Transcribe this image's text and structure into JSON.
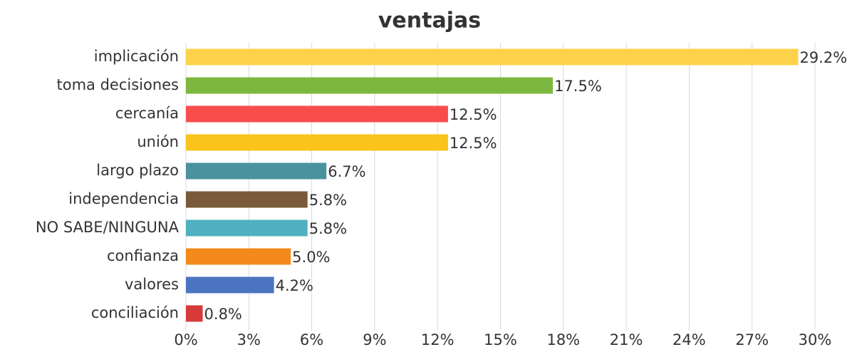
{
  "chart_data": {
    "type": "bar",
    "orientation": "horizontal",
    "title": "ventajas",
    "categories": [
      "implicación",
      "toma decisiones",
      "cercanía",
      "unión",
      "largo plazo",
      "independencia",
      "NO SABE/NINGUNA",
      "confianza",
      "valores",
      "conciliación"
    ],
    "values": [
      29.2,
      17.5,
      12.5,
      12.5,
      6.7,
      5.8,
      5.8,
      5.0,
      4.2,
      0.8
    ],
    "value_labels": [
      "29.2%",
      "17.5%",
      "12.5%",
      "12.5%",
      "6.7%",
      "5.8%",
      "5.8%",
      "5.0%",
      "4.2%",
      "0.8%"
    ],
    "colors": [
      "#fdd24a",
      "#7cb83f",
      "#f84d4d",
      "#fbc41c",
      "#4a939e",
      "#7a5a3a",
      "#50b0c0",
      "#f2891a",
      "#4a74c0",
      "#d63a3a"
    ],
    "xlim": [
      0,
      30
    ],
    "xticks": [
      {
        "value": 0,
        "label": "0%"
      },
      {
        "value": 3,
        "label": "3%"
      },
      {
        "value": 6,
        "label": "6%"
      },
      {
        "value": 9,
        "label": "9%"
      },
      {
        "value": 12,
        "label": "12%"
      },
      {
        "value": 15,
        "label": "15%"
      },
      {
        "value": 18,
        "label": "18%"
      },
      {
        "value": 21,
        "label": "21%"
      },
      {
        "value": 24,
        "label": "24%"
      },
      {
        "value": 27,
        "label": "27%"
      },
      {
        "value": 30,
        "label": "30%"
      }
    ],
    "grid": true
  }
}
